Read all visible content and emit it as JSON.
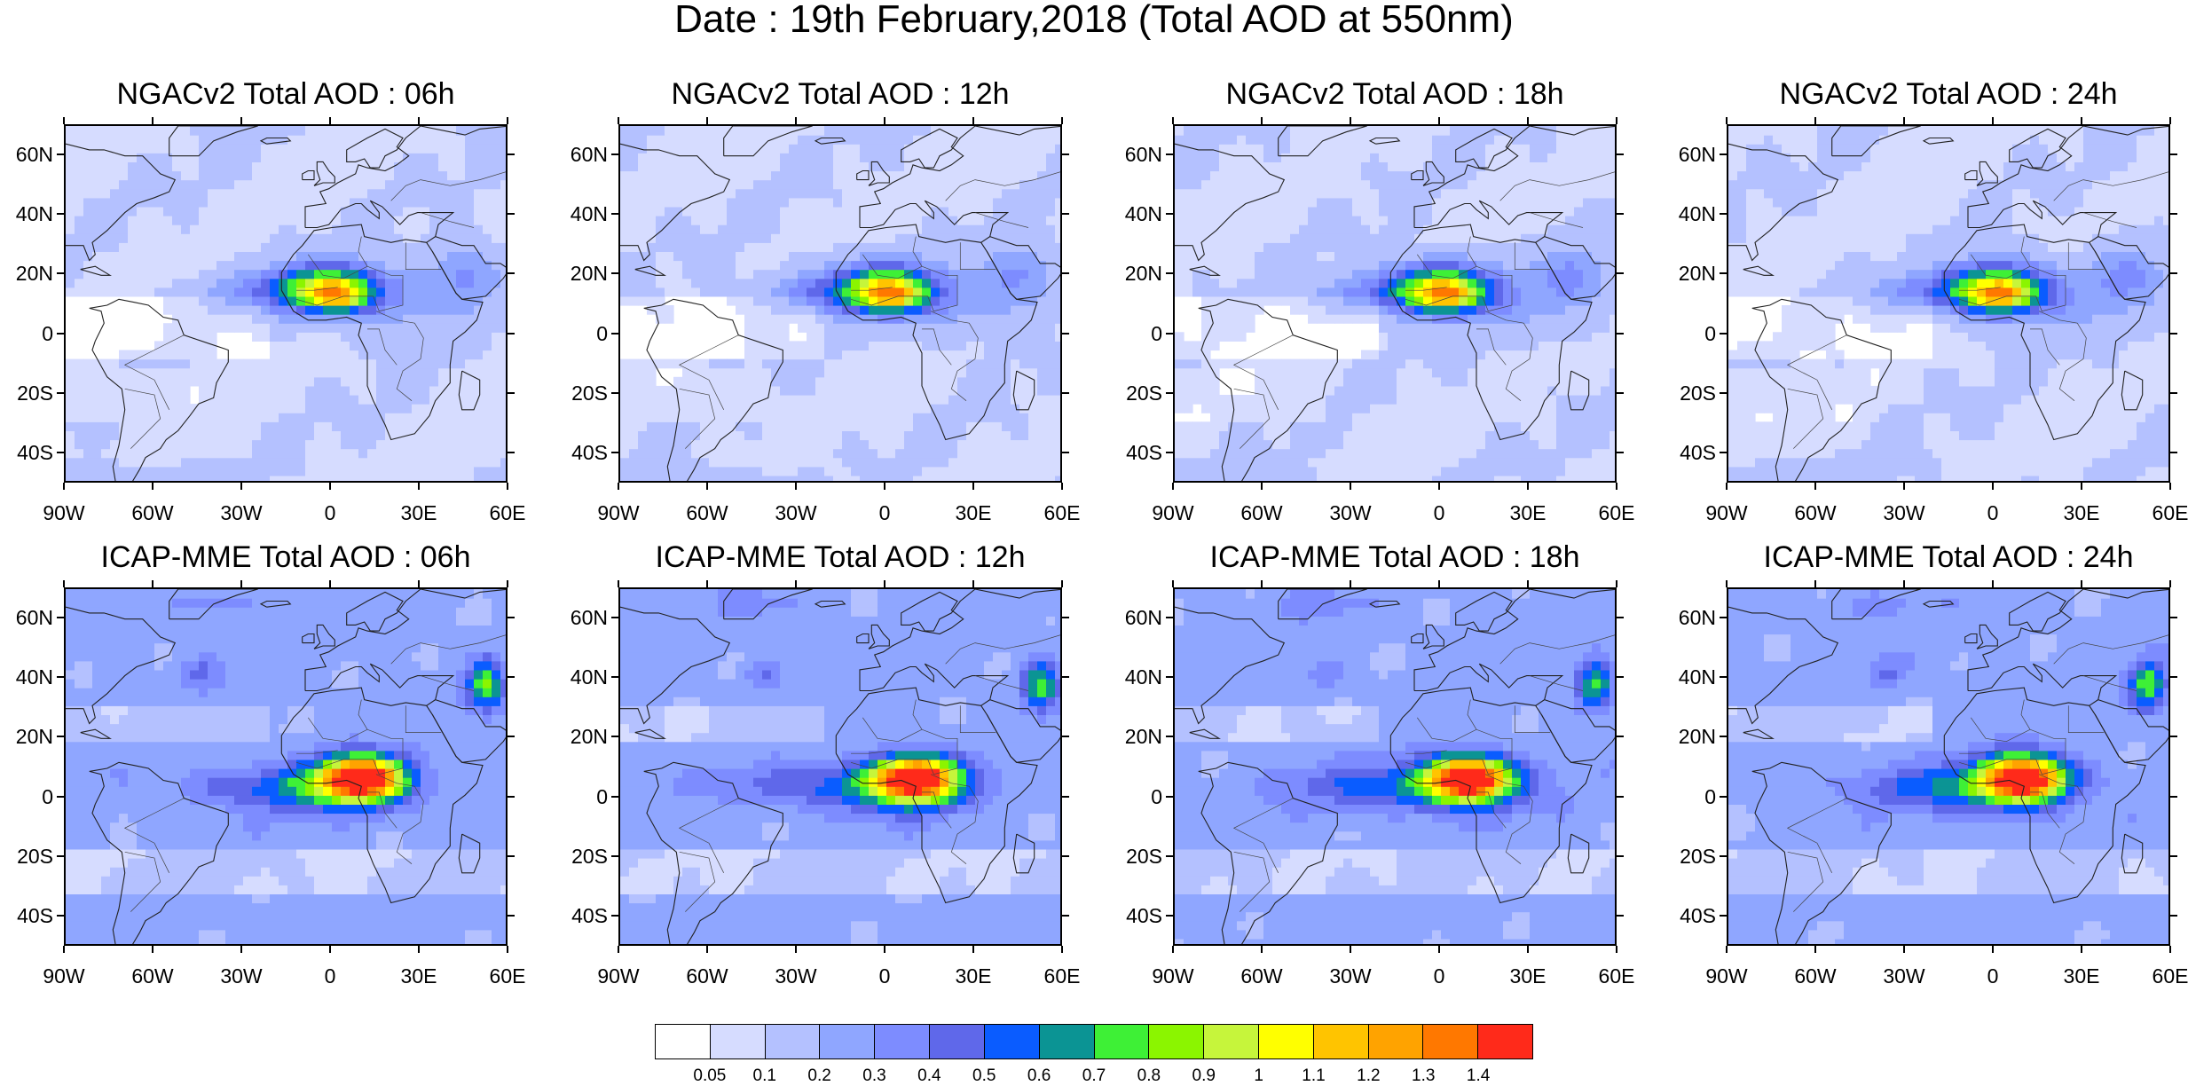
{
  "title": "Date : 19th February,2018 (Total AOD at 550nm)",
  "panels": [
    {
      "title": "NGACv2 Total AOD : 06h",
      "model": "ngac",
      "hour": 6
    },
    {
      "title": "NGACv2 Total AOD : 12h",
      "model": "ngac",
      "hour": 12
    },
    {
      "title": "NGACv2 Total AOD : 18h",
      "model": "ngac",
      "hour": 18
    },
    {
      "title": "NGACv2 Total AOD : 24h",
      "model": "ngac",
      "hour": 24
    },
    {
      "title": "ICAP-MME Total AOD : 06h",
      "model": "icap",
      "hour": 6
    },
    {
      "title": "ICAP-MME Total AOD : 12h",
      "model": "icap",
      "hour": 12
    },
    {
      "title": "ICAP-MME Total AOD : 18h",
      "model": "icap",
      "hour": 18
    },
    {
      "title": "ICAP-MME Total AOD : 24h",
      "model": "icap",
      "hour": 24
    }
  ],
  "map_extent": {
    "lon": [
      -90,
      60
    ],
    "lat": [
      -50,
      70
    ]
  },
  "lat_labels": [
    "60N",
    "40N",
    "20N",
    "0",
    "20S",
    "40S"
  ],
  "lon_labels": [
    "90W",
    "60W",
    "30W",
    "0",
    "30E",
    "60E"
  ],
  "colorbar": {
    "labels": [
      "0.05",
      "0.1",
      "0.2",
      "0.3",
      "0.4",
      "0.5",
      "0.6",
      "0.7",
      "0.8",
      "0.9",
      "1",
      "1.1",
      "1.2",
      "1.3",
      "1.4"
    ],
    "colors": [
      "#ffffff",
      "#d6dcff",
      "#b4c1ff",
      "#8fa6ff",
      "#7d8cff",
      "#5f68ea",
      "#0a5cff",
      "#0b9494",
      "#3ef036",
      "#8bf500",
      "#c6f53b",
      "#ffff00",
      "#ffc400",
      "#ffa300",
      "#ff7800",
      "#ff2a1a"
    ]
  }
}
